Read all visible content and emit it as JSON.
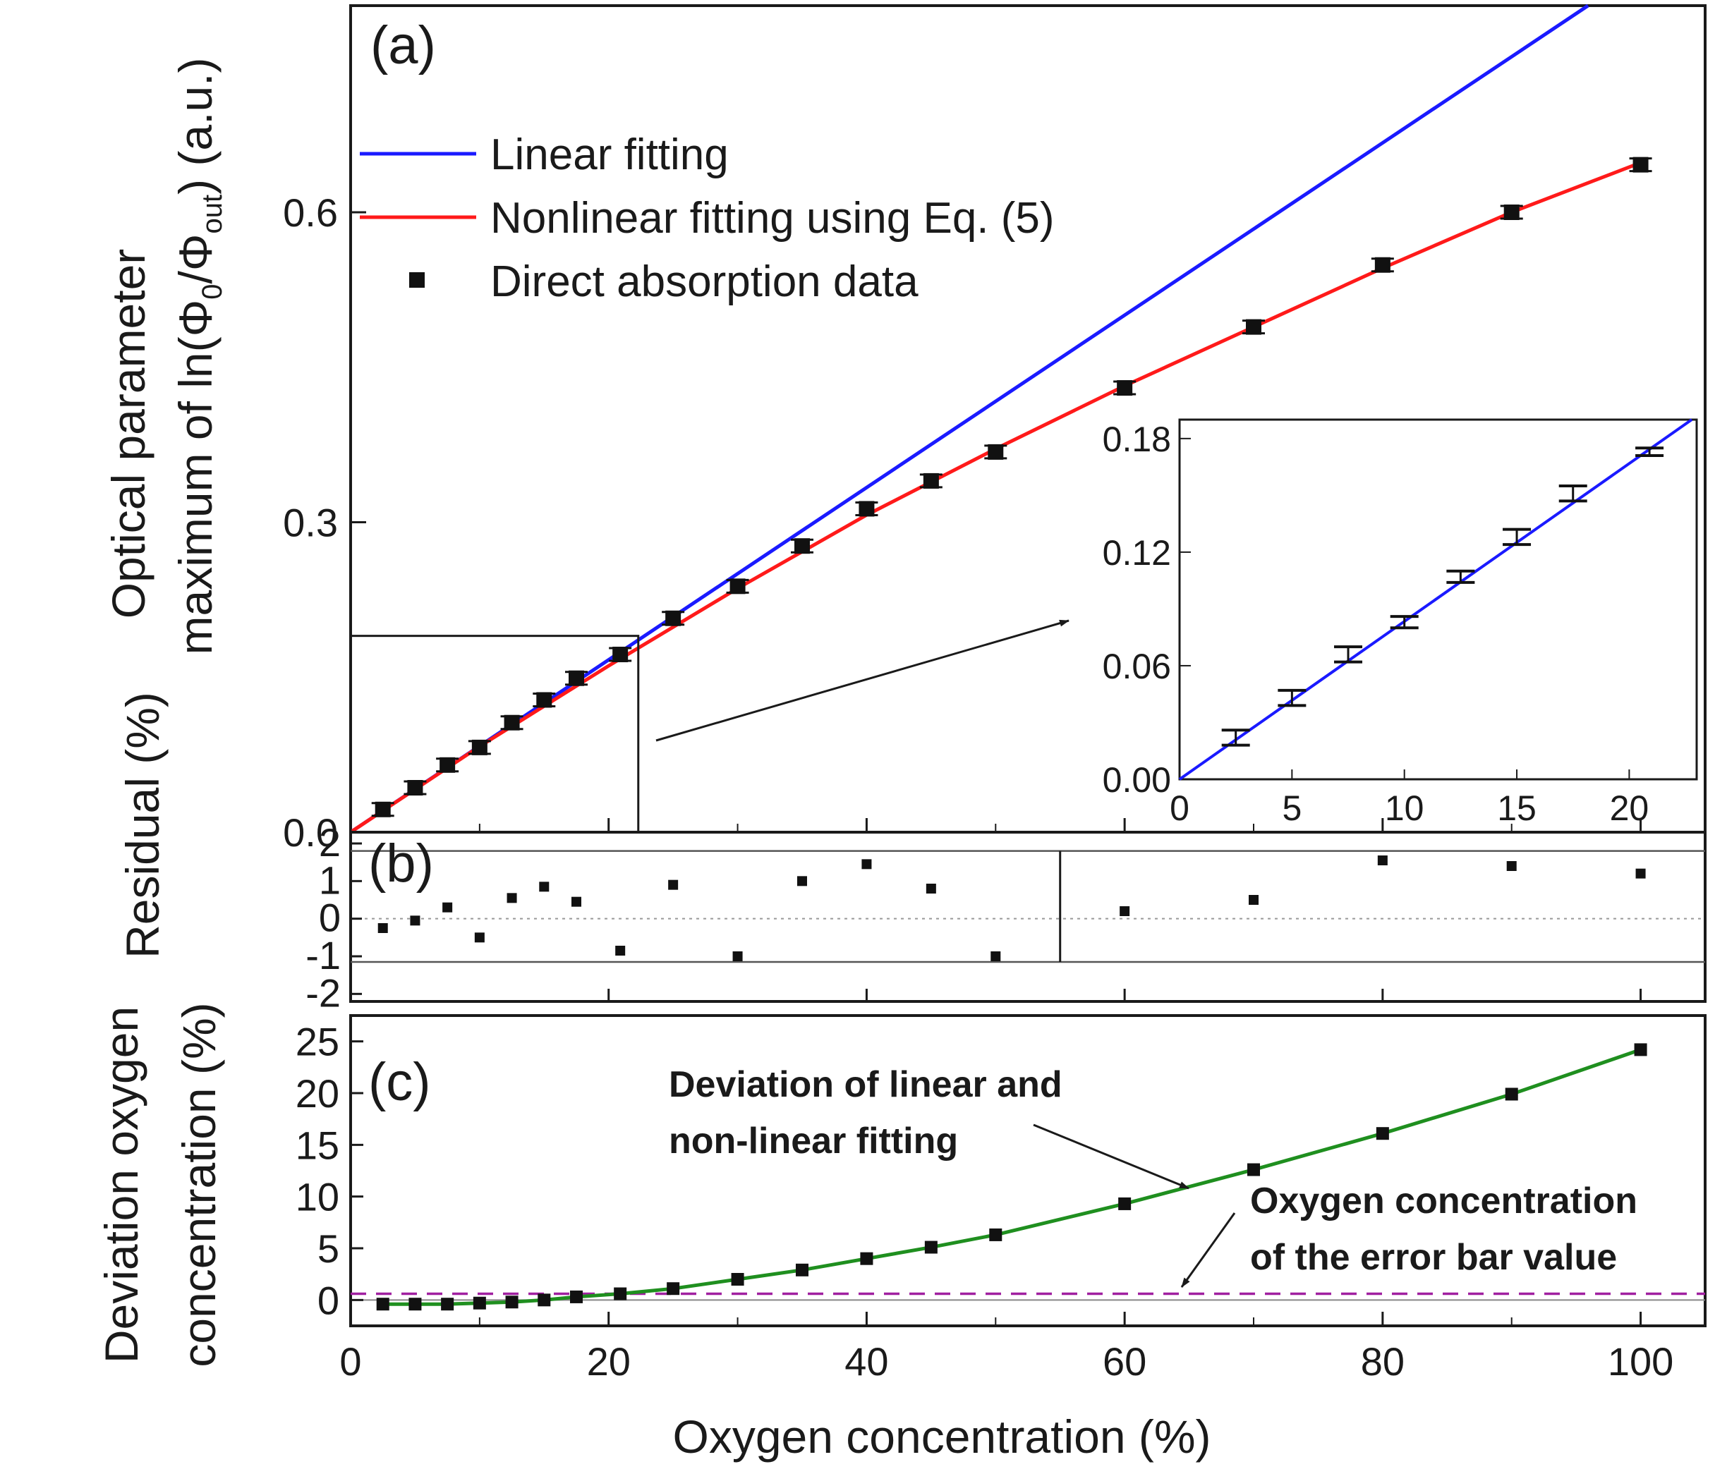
{
  "colors": {
    "linear": "#1a1aff",
    "nonlinear": "#ff1a1a",
    "deviation": "#1f8f1f",
    "dashed": "#a020a0",
    "marker": "#111111",
    "axis": "#1a1a1a"
  },
  "chart_data": [
    {
      "id": "a",
      "type": "scatter",
      "panel_label": "(a)",
      "ylabel": "Optical parameter",
      "ylabel_line2": "maximum of ln(Φ0/Φout) (a.u.)",
      "ylabel_line2_parts": [
        "maximum of ln(Φ",
        "0",
        "/Φ",
        "out",
        ") (a.u.)"
      ],
      "xlim": [
        0,
        105
      ],
      "ylim": [
        0,
        0.8
      ],
      "yticks": [
        "0.0",
        "0.3",
        "0.6"
      ],
      "ytick_values": [
        0,
        0.3,
        0.6
      ],
      "legend_position": "top-left",
      "legend": [
        "Linear fitting",
        "Nonlinear fitting using Eq. (5)",
        "Direct absorption data"
      ],
      "series": [
        {
          "name": "Linear fitting",
          "type": "line",
          "slope": 0.00834
        },
        {
          "name": "Nonlinear fitting using Eq. (5)",
          "type": "line",
          "x": [
            0,
            10,
            20,
            30,
            40,
            50,
            60,
            70,
            80,
            90,
            100
          ],
          "y": [
            0,
            0.083,
            0.161,
            0.236,
            0.307,
            0.371,
            0.432,
            0.489,
            0.546,
            0.6,
            0.648
          ]
        },
        {
          "name": "Direct absorption data",
          "type": "scatter",
          "x": [
            2.5,
            5,
            7.5,
            10,
            12.5,
            15,
            17.5,
            20.9,
            25,
            30,
            35,
            40,
            45,
            50,
            60,
            70,
            80,
            90,
            100
          ],
          "y": [
            0.022,
            0.043,
            0.065,
            0.082,
            0.106,
            0.128,
            0.149,
            0.172,
            0.207,
            0.238,
            0.277,
            0.313,
            0.34,
            0.368,
            0.43,
            0.489,
            0.549,
            0.6,
            0.646
          ]
        }
      ],
      "inset": {
        "xlim": [
          0,
          23
        ],
        "ylim": [
          0,
          0.19
        ],
        "xticks": [
          "0",
          "5",
          "10",
          "15",
          "20"
        ],
        "xtick_values": [
          0,
          5,
          10,
          15,
          20
        ],
        "yticks": [
          "0.00",
          "0.06",
          "0.12",
          "0.18"
        ],
        "ytick_values": [
          0,
          0.06,
          0.12,
          0.18
        ],
        "x": [
          2.5,
          5,
          7.5,
          10,
          12.5,
          15,
          17.5,
          20.9
        ],
        "y": [
          0.022,
          0.043,
          0.066,
          0.083,
          0.107,
          0.128,
          0.151,
          0.173
        ],
        "err": [
          0.004,
          0.004,
          0.004,
          0.003,
          0.003,
          0.004,
          0.004,
          0.002
        ],
        "line_slope": 0.00834
      }
    },
    {
      "id": "b",
      "type": "scatter",
      "panel_label": "(b)",
      "ylabel": "Residual (%)",
      "xlim": [
        0,
        105
      ],
      "ylim": [
        -2.2,
        2.3
      ],
      "yticks": [
        "-2",
        "-1",
        "0",
        "1",
        "2"
      ],
      "ytick_values": [
        -2,
        -1,
        0,
        1,
        2
      ],
      "reference_lines": [
        1.8,
        -1.15
      ],
      "zero_line": 0,
      "x": [
        2.5,
        5,
        7.5,
        10,
        12.5,
        15,
        17.5,
        20.9,
        25,
        30,
        35,
        40,
        45,
        50,
        60,
        70,
        80,
        90,
        100
      ],
      "y": [
        -0.25,
        -0.05,
        0.3,
        -0.5,
        0.55,
        0.85,
        0.45,
        -0.85,
        0.9,
        -1.0,
        1.0,
        1.45,
        0.8,
        -1.0,
        0.2,
        0.5,
        1.55,
        1.4,
        1.2
      ]
    },
    {
      "id": "c",
      "type": "line",
      "panel_label": "(c)",
      "ylabel": "Deviation oxygen",
      "ylabel_line2": "concentration (%)",
      "xlabel": "Oxygen concentration (%)",
      "xlim": [
        0,
        105
      ],
      "ylim": [
        -2.5,
        27.5
      ],
      "xticks": [
        "0",
        "20",
        "40",
        "60",
        "80",
        "100"
      ],
      "xtick_values": [
        0,
        20,
        40,
        60,
        80,
        100
      ],
      "yticks": [
        "0",
        "5",
        "10",
        "15",
        "20",
        "25"
      ],
      "ytick_values": [
        0,
        5,
        10,
        15,
        20,
        25
      ],
      "dashed_level": 0.6,
      "zero_line": 0,
      "x": [
        2.5,
        5,
        7.5,
        10,
        12.5,
        15,
        17.5,
        20.9,
        25,
        30,
        35,
        40,
        45,
        50,
        60,
        70,
        80,
        90,
        100
      ],
      "y": [
        -0.4,
        -0.4,
        -0.4,
        -0.3,
        -0.2,
        0,
        0.3,
        0.6,
        1.1,
        2.0,
        2.9,
        4.0,
        5.1,
        6.3,
        9.3,
        12.6,
        16.1,
        19.9,
        24.2
      ],
      "annotations": [
        {
          "lines": [
            "Deviation of linear and",
            "non-linear fitting"
          ],
          "target": "fit-curve"
        },
        {
          "lines": [
            "Oxygen concentration",
            "of the error bar value"
          ],
          "target": "dashed-line"
        }
      ]
    }
  ]
}
